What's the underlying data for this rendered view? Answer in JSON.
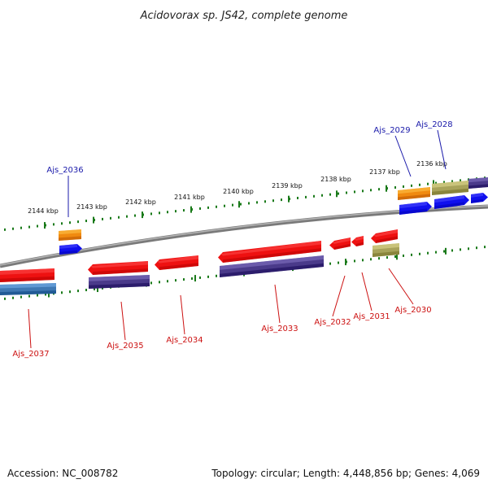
{
  "title": "Acidovorax sp. JS42, complete genome",
  "footer": {
    "accession": "Accession: NC_008782",
    "topology": "Topology: circular; Length: 4,448,856 bp; Genes: 4,069"
  },
  "colors": {
    "forward_label": "#1a1aaa",
    "reverse_label": "#cc1111",
    "tick": "#1a7a1a",
    "backbone": "#8a8a8a"
  },
  "ticks": [
    "2144 kbp",
    "2143 kbp",
    "2142 kbp",
    "2141 kbp",
    "2140 kbp",
    "2139 kbp",
    "2138 kbp",
    "2137 kbp",
    "2136 kbp"
  ],
  "genes_forward": [
    "Ajs_2036",
    "Ajs_2029",
    "Ajs_2028"
  ],
  "genes_reverse": [
    "Ajs_2037",
    "Ajs_2035",
    "Ajs_2034",
    "Ajs_2033",
    "Ajs_2032",
    "Ajs_2031",
    "Ajs_2030"
  ]
}
